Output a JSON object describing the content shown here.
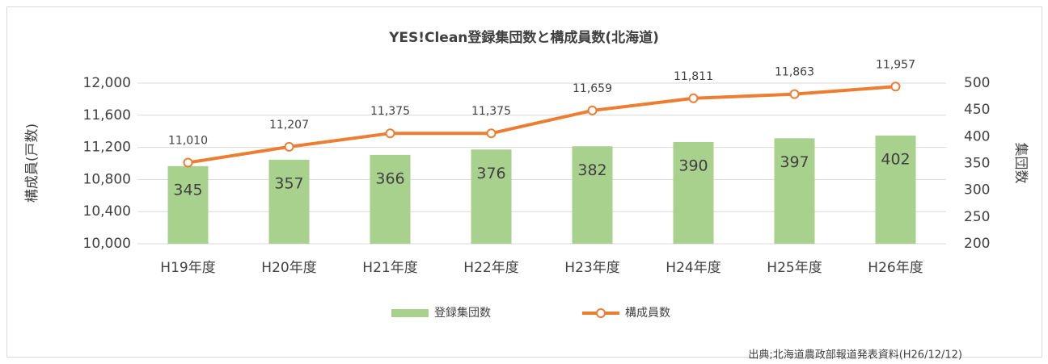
{
  "chart_data": {
    "type": "combo",
    "title": "YES!Clean登録集団数と構成員数(北海道)",
    "y_label": "構成員(戸数)",
    "y2_label": "集団数",
    "source": "出典;北海道農政部報道発表資料(H26/12/12)",
    "categories": [
      "H19年度",
      "H20年度",
      "H21年度",
      "H22年度",
      "H23年度",
      "H24年度",
      "H25年度",
      "H26年度"
    ],
    "series": [
      {
        "name": "登録集団数",
        "type": "bar",
        "axis": "y2",
        "color": "#a9d18e",
        "values": [
          345,
          357,
          366,
          376,
          382,
          390,
          397,
          402
        ]
      },
      {
        "name": "構成員数",
        "type": "line",
        "axis": "y",
        "color": "#ed7d31",
        "values": [
          11010,
          11207,
          11375,
          11375,
          11659,
          11811,
          11863,
          11957
        ],
        "value_labels": [
          "11,010",
          "11,207",
          "11,375",
          "11,375",
          "11,659",
          "11,811",
          "11,863",
          "11,957"
        ]
      }
    ],
    "ylim": [
      10000,
      12000
    ],
    "yticks": [
      {
        "value": 10000,
        "label": "10,000"
      },
      {
        "value": 10400,
        "label": "10,400"
      },
      {
        "value": 10800,
        "label": "10,800"
      },
      {
        "value": 11200,
        "label": "11,200"
      },
      {
        "value": 11600,
        "label": "11,600"
      },
      {
        "value": 12000,
        "label": "12,000"
      }
    ],
    "y2lim": [
      200,
      500
    ],
    "y2ticks": [
      200,
      250,
      300,
      350,
      400,
      450,
      500
    ],
    "grid": true,
    "legend": "bottom"
  }
}
